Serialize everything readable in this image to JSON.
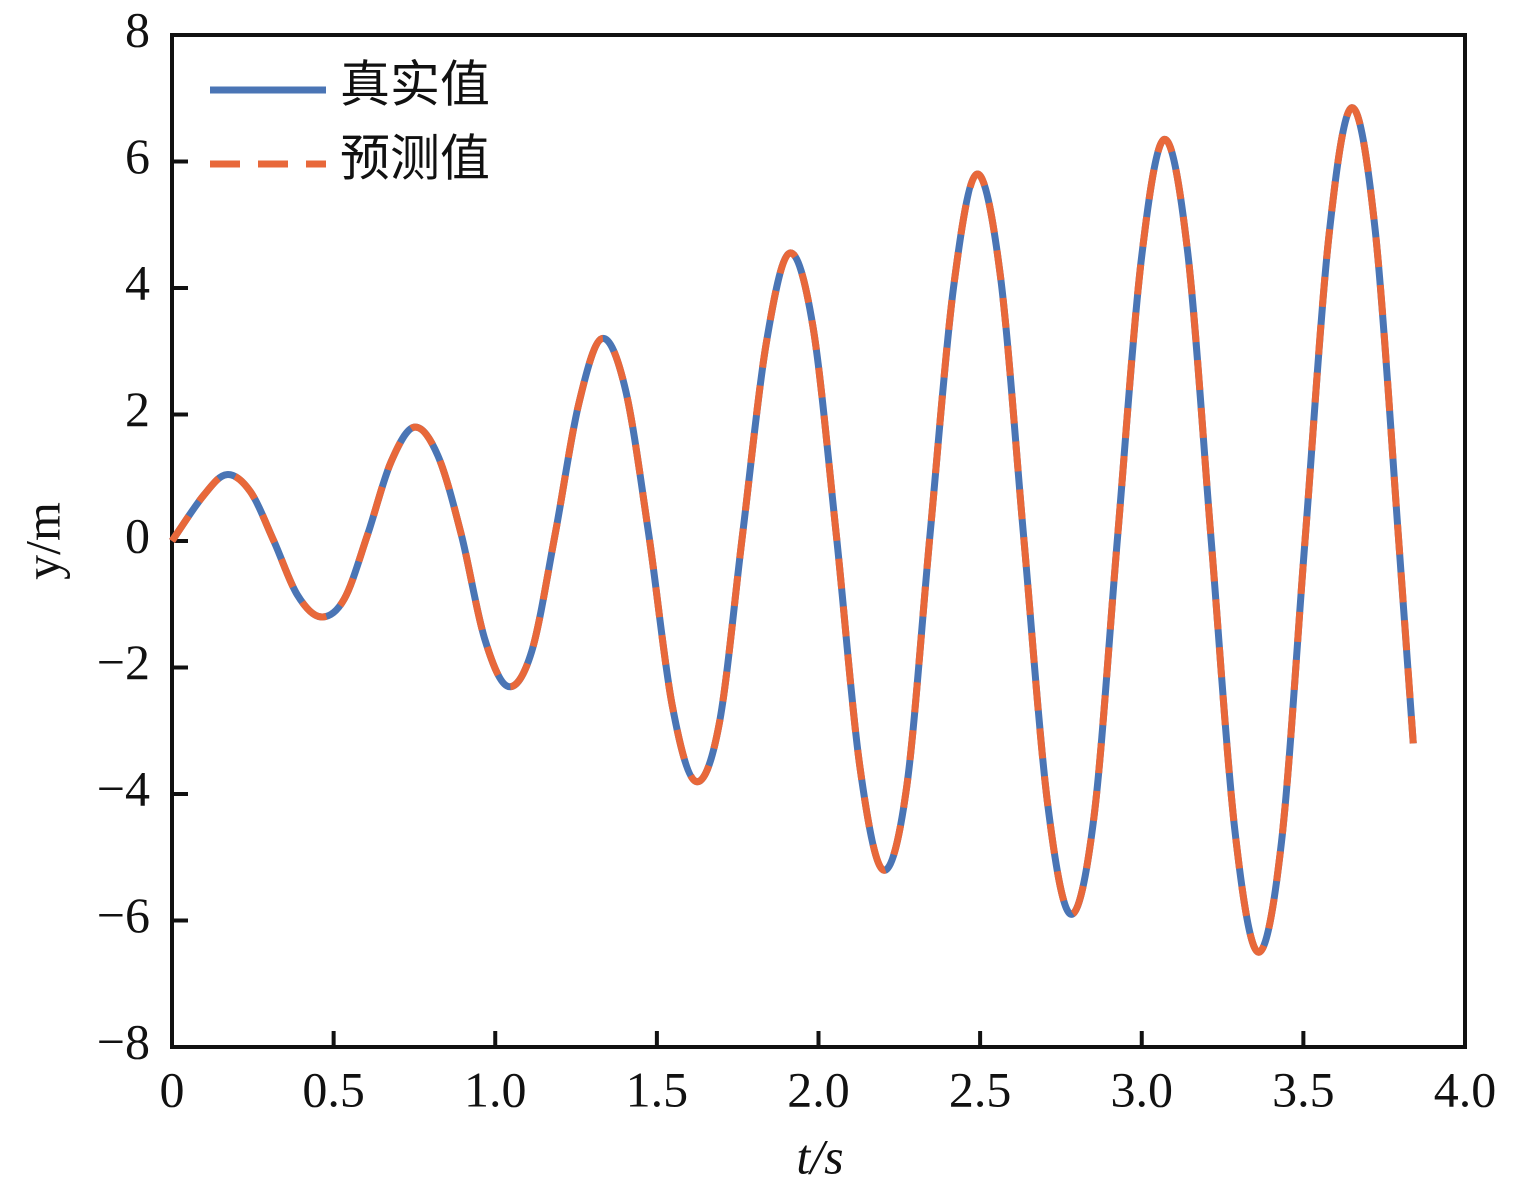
{
  "chart_data": {
    "type": "line",
    "xlabel": "t/s",
    "ylabel": "y/m",
    "x": [
      0,
      0.0975,
      0.17,
      0.2425,
      0.315,
      0.3875,
      0.46,
      0.5325,
      0.605,
      0.6775,
      0.75,
      0.8225,
      0.895,
      0.9675,
      1.04,
      1.1125,
      1.185,
      1.2575,
      1.33,
      1.4025,
      1.475,
      1.5475,
      1.62,
      1.6925,
      1.765,
      1.8375,
      1.91,
      1.9825,
      2.055,
      2.1275,
      2.2,
      2.2725,
      2.345,
      2.4175,
      2.49,
      2.5625,
      2.635,
      2.7075,
      2.78,
      2.8525,
      2.925,
      2.9975,
      3.07,
      3.1425,
      3.215,
      3.2875,
      3.36,
      3.4325,
      3.505,
      3.5775,
      3.65,
      3.7225,
      3.795,
      3.84
    ],
    "series": [
      {
        "name": "真实值",
        "color": "#4a75b5",
        "dash": false,
        "values": [
          0,
          0.72,
          1.05,
          0.78,
          0,
          -0.85,
          -1.2,
          -0.92,
          0.1,
          1.25,
          1.8,
          1.35,
          0.1,
          -1.55,
          -2.3,
          -1.75,
          0.1,
          2.15,
          3.2,
          2.4,
          0.1,
          -2.6,
          -3.8,
          -2.9,
          0.1,
          3.1,
          4.55,
          3.4,
          0.1,
          -3.55,
          -5.2,
          -3.9,
          0.1,
          4.0,
          5.8,
          4.2,
          0.05,
          -4.1,
          -5.9,
          -4.35,
          0.05,
          4.4,
          6.35,
          4.55,
          0,
          -4.55,
          -6.5,
          -4.75,
          0,
          4.75,
          6.85,
          4.9,
          0,
          -3.2
        ]
      },
      {
        "name": "预测值",
        "color": "#e8683a",
        "dash": true,
        "values": [
          0,
          0.72,
          1.05,
          0.78,
          0,
          -0.85,
          -1.2,
          -0.92,
          0.1,
          1.25,
          1.8,
          1.35,
          0.1,
          -1.55,
          -2.3,
          -1.75,
          0.1,
          2.15,
          3.2,
          2.4,
          0.1,
          -2.6,
          -3.8,
          -2.9,
          0.1,
          3.1,
          4.55,
          3.4,
          0.1,
          -3.55,
          -5.2,
          -3.9,
          0.1,
          4.0,
          5.8,
          4.2,
          0.05,
          -4.1,
          -5.9,
          -4.35,
          0.05,
          4.4,
          6.35,
          4.55,
          0,
          -4.55,
          -6.5,
          -4.75,
          0,
          4.75,
          6.85,
          4.9,
          0,
          -3.2
        ]
      }
    ],
    "xlim": [
      0,
      4
    ],
    "xticks": [
      0,
      0.5,
      {
        "value": 1,
        "label": "1.0"
      },
      1.5,
      {
        "value": 2,
        "label": "2.0"
      },
      2.5,
      {
        "value": 3,
        "label": "3.0"
      },
      3.5,
      {
        "value": 4,
        "label": "4.0"
      }
    ],
    "ylim": [
      -8,
      8
    ],
    "yticks": [
      {
        "value": -8,
        "label": "−8"
      },
      {
        "value": -6,
        "label": "−6"
      },
      {
        "value": -4,
        "label": "−4"
      },
      {
        "value": -2,
        "label": "−2"
      },
      0,
      2,
      4,
      6,
      8
    ],
    "legend": "upper left",
    "grid": false
  }
}
